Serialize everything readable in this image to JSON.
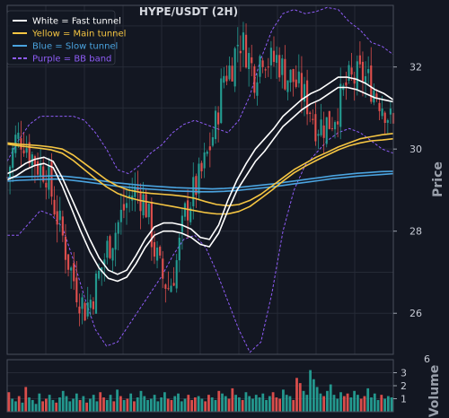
{
  "chart_data": {
    "type": "line",
    "title": "HYPE/USDT (2H)",
    "ylabel": "Price",
    "ylim": [
      25,
      33.5
    ],
    "yticks": [
      26,
      28,
      30,
      32
    ],
    "grid": true,
    "legend_position": "top-left",
    "background": "#131722",
    "colors": {
      "fast": "#ffffff",
      "main": "#f5c542",
      "slow": "#4aa3df",
      "bb": "#8f5cf7",
      "up": "#26a69a",
      "down": "#ef5350"
    },
    "legend": [
      {
        "label": "White = Fast tunnel",
        "color": "#ffffff",
        "style": "solid"
      },
      {
        "label": "Yellow = Main tunnel",
        "color": "#f5c542",
        "style": "solid"
      },
      {
        "label": "Blue = Slow tunnel",
        "color": "#4aa3df",
        "style": "solid"
      },
      {
        "label": "Purple = BB band",
        "color": "#8f5cf7",
        "style": "dashed"
      }
    ],
    "x": [
      0,
      10,
      20,
      30,
      40,
      50,
      60,
      70,
      80,
      90,
      100,
      110,
      120,
      130,
      140,
      150,
      160,
      170,
      180,
      190,
      200,
      210,
      220,
      230,
      240,
      250,
      260,
      270,
      280,
      290,
      300,
      310,
      320,
      330,
      340,
      350,
      360,
      370,
      380,
      390,
      400,
      410,
      420,
      430,
      440,
      450,
      460,
      470,
      480,
      490,
      500
    ],
    "close_trend": [
      29.3,
      30.2,
      30.3,
      29.9,
      29.6,
      29.5,
      28.7,
      28.0,
      27.2,
      26.6,
      26.1,
      26.4,
      27.0,
      27.6,
      28.0,
      28.5,
      28.9,
      29.0,
      28.6,
      27.6,
      26.9,
      26.6,
      27.3,
      28.4,
      28.9,
      29.3,
      29.9,
      30.6,
      31.8,
      32.0,
      32.7,
      32.4,
      31.8,
      32.4,
      32.1,
      32.2,
      31.8,
      31.7,
      31.4,
      31.1,
      30.6,
      30.6,
      30.7,
      31.1,
      31.6,
      31.7,
      31.8,
      31.6,
      31.3,
      31.0,
      30.5
    ],
    "series": [
      {
        "name": "White = Fast tunnel",
        "values_upper": [
          29.4,
          29.5,
          29.65,
          29.75,
          29.8,
          29.7,
          29.3,
          28.8,
          28.3,
          27.8,
          27.35,
          27.05,
          26.95,
          27.05,
          27.4,
          27.8,
          28.1,
          28.2,
          28.2,
          28.15,
          28.05,
          27.85,
          27.8,
          28.15,
          28.75,
          29.25,
          29.65,
          30.0,
          30.25,
          30.5,
          30.8,
          31.0,
          31.2,
          31.35,
          31.45,
          31.6,
          31.75,
          31.75,
          31.7,
          31.6,
          31.45,
          31.35,
          31.2
        ],
        "values_lower": [
          29.25,
          29.35,
          29.5,
          29.6,
          29.65,
          29.55,
          29.1,
          28.55,
          28.0,
          27.5,
          27.1,
          26.85,
          26.78,
          26.88,
          27.2,
          27.6,
          27.9,
          28.0,
          28.0,
          27.95,
          27.85,
          27.68,
          27.62,
          27.95,
          28.5,
          29.0,
          29.35,
          29.7,
          29.95,
          30.25,
          30.55,
          30.75,
          30.95,
          31.1,
          31.2,
          31.35,
          31.5,
          31.5,
          31.45,
          31.35,
          31.25,
          31.2,
          31.15
        ]
      },
      {
        "name": "Yellow = Main tunnel",
        "values_upper": [
          30.15,
          30.12,
          30.1,
          30.08,
          30.05,
          30.0,
          29.85,
          29.65,
          29.45,
          29.25,
          29.1,
          29.0,
          28.95,
          28.92,
          28.9,
          28.88,
          28.85,
          28.8,
          28.72,
          28.65,
          28.62,
          28.65,
          28.75,
          28.9,
          29.1,
          29.3,
          29.5,
          29.65,
          29.8,
          29.92,
          30.05,
          30.15,
          30.25,
          30.3,
          30.35,
          30.38
        ],
        "values_lower": [
          30.12,
          30.08,
          30.05,
          30.02,
          29.98,
          29.9,
          29.72,
          29.5,
          29.28,
          29.08,
          28.92,
          28.82,
          28.75,
          28.7,
          28.65,
          28.6,
          28.55,
          28.5,
          28.45,
          28.42,
          28.42,
          28.48,
          28.6,
          28.8,
          29.0,
          29.22,
          29.42,
          29.58,
          29.72,
          29.85,
          29.98,
          30.08,
          30.15,
          30.2,
          30.22,
          30.25
        ]
      },
      {
        "name": "Blue = Slow tunnel",
        "values_upper": [
          29.3,
          29.32,
          29.33,
          29.34,
          29.35,
          29.33,
          29.3,
          29.26,
          29.22,
          29.18,
          29.15,
          29.12,
          29.1,
          29.08,
          29.06,
          29.05,
          29.04,
          29.03,
          29.04,
          29.06,
          29.09,
          29.12,
          29.15,
          29.19,
          29.23,
          29.27,
          29.31,
          29.35,
          29.38,
          29.41,
          29.43,
          29.45,
          29.46
        ],
        "values_lower": [
          29.22,
          29.24,
          29.25,
          29.26,
          29.27,
          29.25,
          29.22,
          29.18,
          29.14,
          29.1,
          29.07,
          29.04,
          29.02,
          29.0,
          28.98,
          28.97,
          28.96,
          28.96,
          28.97,
          28.99,
          29.02,
          29.05,
          29.08,
          29.12,
          29.16,
          29.2,
          29.24,
          29.28,
          29.31,
          29.34,
          29.36,
          29.38,
          29.4
        ]
      },
      {
        "name": "Purple = BB band",
        "values_upper": [
          29.7,
          30.2,
          30.6,
          30.8,
          30.8,
          30.8,
          30.8,
          30.7,
          30.4,
          30.0,
          29.5,
          29.4,
          29.6,
          29.9,
          30.1,
          30.4,
          30.6,
          30.7,
          30.6,
          30.5,
          30.4,
          30.7,
          31.3,
          32.2,
          32.9,
          33.3,
          33.4,
          33.3,
          33.35,
          33.45,
          33.4,
          33.1,
          32.9,
          32.6,
          32.5,
          32.3
        ],
        "values_lower": [
          27.9,
          27.9,
          28.2,
          28.5,
          28.4,
          28.1,
          27.3,
          26.4,
          25.6,
          25.2,
          25.3,
          25.7,
          26.1,
          26.5,
          26.9,
          27.4,
          27.8,
          27.9,
          27.6,
          27.0,
          26.3,
          25.6,
          25.05,
          25.3,
          26.5,
          28.0,
          29.0,
          29.6,
          29.9,
          30.2,
          30.4,
          30.5,
          30.4,
          30.2,
          30.0,
          29.9
        ]
      }
    ],
    "volume": {
      "ylabel": "Volume",
      "exponent": "6",
      "ylim": [
        0,
        4
      ],
      "yticks": [
        1,
        2,
        3
      ],
      "values": [
        1.5,
        1.0,
        0.8,
        1.2,
        0.7,
        1.9,
        1.1,
        0.9,
        0.6,
        1.4,
        0.8,
        1.0,
        1.3,
        0.9,
        0.7,
        1.1,
        1.6,
        1.2,
        0.8,
        1.0,
        1.4,
        0.9,
        1.2,
        0.7,
        1.0,
        1.3,
        0.8,
        1.5,
        1.1,
        0.9,
        1.3,
        0.8,
        1.7,
        1.2,
        0.9,
        1.0,
        1.4,
        0.8,
        1.1,
        1.6,
        1.2,
        0.9,
        1.0,
        1.3,
        0.8,
        1.1,
        1.5,
        1.0,
        0.9,
        1.2,
        1.4,
        0.8,
        1.0,
        1.3,
        0.9,
        1.1,
        1.2,
        1.0,
        0.8,
        1.3,
        1.1,
        0.9,
        1.6,
        1.4,
        1.2,
        1.0,
        1.8,
        1.3,
        1.1,
        0.9,
        1.5,
        1.2,
        1.0,
        1.3,
        1.1,
        1.4,
        0.9,
        1.2,
        1.5,
        1.1,
        1.0,
        1.7,
        1.3,
        1.2,
        0.9,
        2.6,
        2.2,
        1.6,
        1.3,
        3.2,
        2.5,
        1.9,
        1.4,
        1.2,
        1.6,
        2.1,
        1.3,
        1.0,
        1.5,
        1.2,
        1.4,
        1.1,
        1.6,
        1.3,
        1.0,
        1.2,
        1.8,
        1.1,
        1.4,
        0.9,
        1.3,
        1.0,
        1.2,
        1.1
      ]
    }
  }
}
